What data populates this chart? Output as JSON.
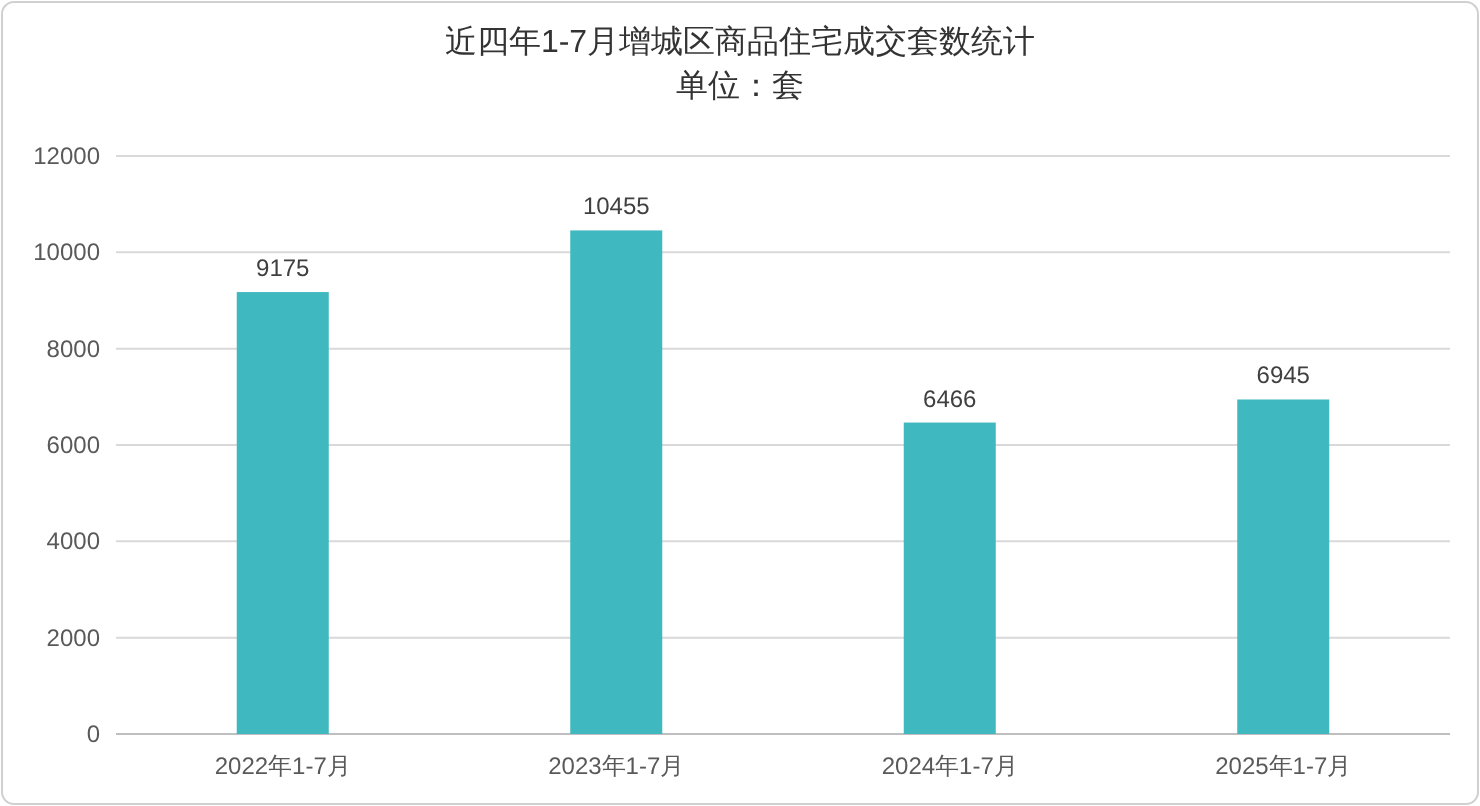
{
  "chart_data": {
    "type": "bar",
    "title": "近四年1-7月增城区商品住宅成交套数统计",
    "subtitle": "单位：套",
    "categories": [
      "2022年1-7月",
      "2023年1-7月",
      "2024年1-7月",
      "2025年1-7月"
    ],
    "values": [
      9175,
      10455,
      6466,
      6945
    ],
    "color": "#3fb8c0",
    "ylim": [
      0,
      12000
    ],
    "yticks": [
      0,
      2000,
      4000,
      6000,
      8000,
      10000,
      12000
    ],
    "grid": "y",
    "data_labels": true
  }
}
